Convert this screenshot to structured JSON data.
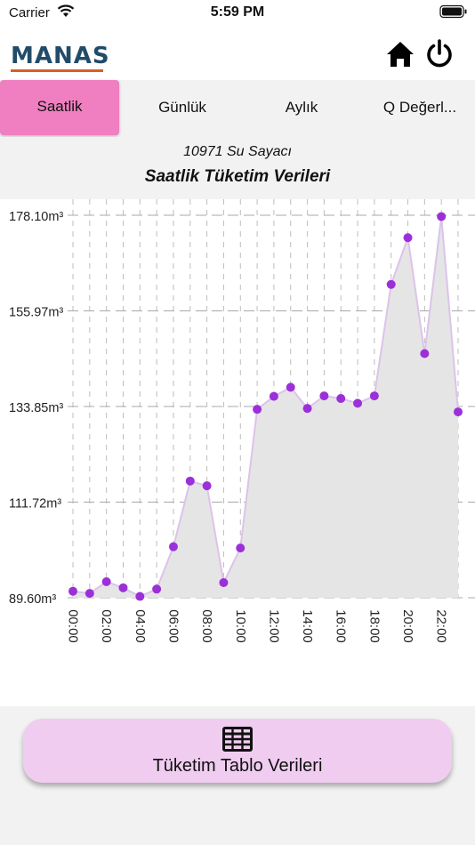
{
  "status_bar": {
    "carrier": "Carrier",
    "time": "5:59 PM"
  },
  "header": {
    "logo_text": "MANAS",
    "logo_color": "#214c69",
    "logo_accent": "#d95f27"
  },
  "tabs": [
    {
      "label": "Saatlik",
      "active": true
    },
    {
      "label": "Günlük",
      "active": false
    },
    {
      "label": "Aylık",
      "active": false
    },
    {
      "label": "Q Değerl...",
      "active": false
    }
  ],
  "meter_subtitle": "10971 Su Sayacı",
  "chart_title": "Saatlik Tüketim Verileri",
  "colors": {
    "accent": "#ef7fc0",
    "point": "#9b30d9",
    "line": "#dcc3ea",
    "fill": "#e5e5e5",
    "button": "#f0cdf0"
  },
  "chart_data": {
    "type": "area",
    "title": "Saatlik Tüketim Verileri",
    "y_unit": "m³",
    "y_ticks": [
      "89.60m³",
      "111.72m³",
      "133.85m³",
      "155.97m³",
      "178.10m³"
    ],
    "ylim": [
      89.6,
      178.1
    ],
    "x_tick_labels": [
      "00:00",
      "02:00",
      "04:00",
      "06:00",
      "08:00",
      "10:00",
      "12:00",
      "14:00",
      "16:00",
      "18:00",
      "20:00",
      "22:00"
    ],
    "grid": true,
    "series": [
      {
        "x": [
          0,
          1,
          2,
          3,
          4,
          5,
          6,
          7,
          8,
          9,
          10,
          11,
          12,
          13,
          14,
          15,
          16,
          17,
          18,
          19,
          20,
          21,
          22,
          23
        ],
        "values": [
          91.1,
          90.6,
          93.3,
          91.9,
          89.9,
          91.6,
          101.4,
          116.6,
          115.5,
          93.1,
          101.1,
          133.2,
          136.2,
          138.3,
          133.4,
          136.3,
          135.7,
          134.6,
          136.3,
          162.1,
          172.9,
          146.1,
          177.8,
          132.6
        ]
      }
    ]
  },
  "table_button": {
    "label": "Tüketim Tablo Verileri"
  }
}
